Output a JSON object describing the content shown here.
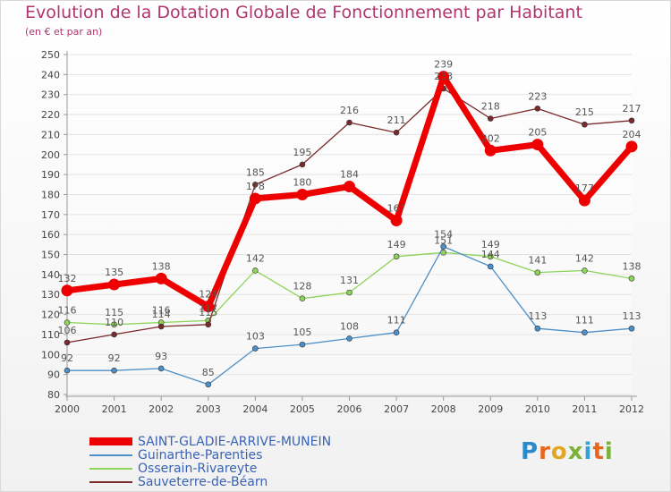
{
  "chart_data": {
    "type": "line",
    "title": "Evolution de la Dotation Globale de Fonctionnement par Habitant",
    "subtitle": "(en € et par an)",
    "xlabel": "",
    "ylabel": "",
    "x": [
      "2000",
      "2001",
      "2002",
      "2003",
      "2004",
      "2005",
      "2006",
      "2007",
      "2008",
      "2009",
      "2010",
      "2011",
      "2012"
    ],
    "yticks": [
      80,
      90,
      100,
      110,
      120,
      130,
      140,
      150,
      160,
      170,
      180,
      190,
      200,
      210,
      220,
      230,
      240,
      250
    ],
    "ylim": [
      80,
      250
    ],
    "grid": "horizontal",
    "legend_position": "bottom-left",
    "series": [
      {
        "name": "SAINT-GLADIE-ARRIVE-MUNEIN",
        "color": "#ee0000",
        "values": [
          132,
          135,
          138,
          124,
          178,
          180,
          184,
          167,
          239,
          202,
          205,
          177,
          204
        ],
        "labels": [
          "132",
          "135",
          "138",
          "124",
          "178",
          "180",
          "184",
          "167",
          "239",
          "202",
          "205",
          "177",
          "204"
        ]
      },
      {
        "name": "Guinarthe-Parenties",
        "color": "#4d8fc8",
        "values": [
          92,
          92,
          93,
          85,
          103,
          105,
          108,
          111,
          154,
          144,
          113,
          111,
          113
        ],
        "labels": [
          "92",
          "92",
          "93",
          "85",
          "103",
          "105",
          "108",
          "111",
          "154",
          "144",
          "113",
          "111",
          "113"
        ]
      },
      {
        "name": "Osserain-Rivareyte",
        "color": "#8fd45a",
        "values": [
          116,
          115,
          116,
          117,
          142,
          128,
          131,
          149,
          151,
          149,
          141,
          142,
          138
        ],
        "labels": [
          "116",
          "115",
          "116",
          "117",
          "142",
          "128",
          "131",
          "149",
          "151",
          "149",
          "141",
          "142",
          "138"
        ]
      },
      {
        "name": "Sauveterre-de-Béarn",
        "color": "#7a2a2a",
        "values": [
          106,
          110,
          114,
          115,
          185,
          195,
          216,
          211,
          233,
          218,
          223,
          215,
          217
        ],
        "labels": [
          "106",
          "110",
          "114",
          "115",
          "185",
          "195",
          "216",
          "211",
          "233",
          "218",
          "223",
          "215",
          "217"
        ]
      }
    ]
  },
  "branding": {
    "logo_text": [
      "P",
      "r",
      "o",
      "x",
      "i",
      "t",
      "i"
    ]
  }
}
